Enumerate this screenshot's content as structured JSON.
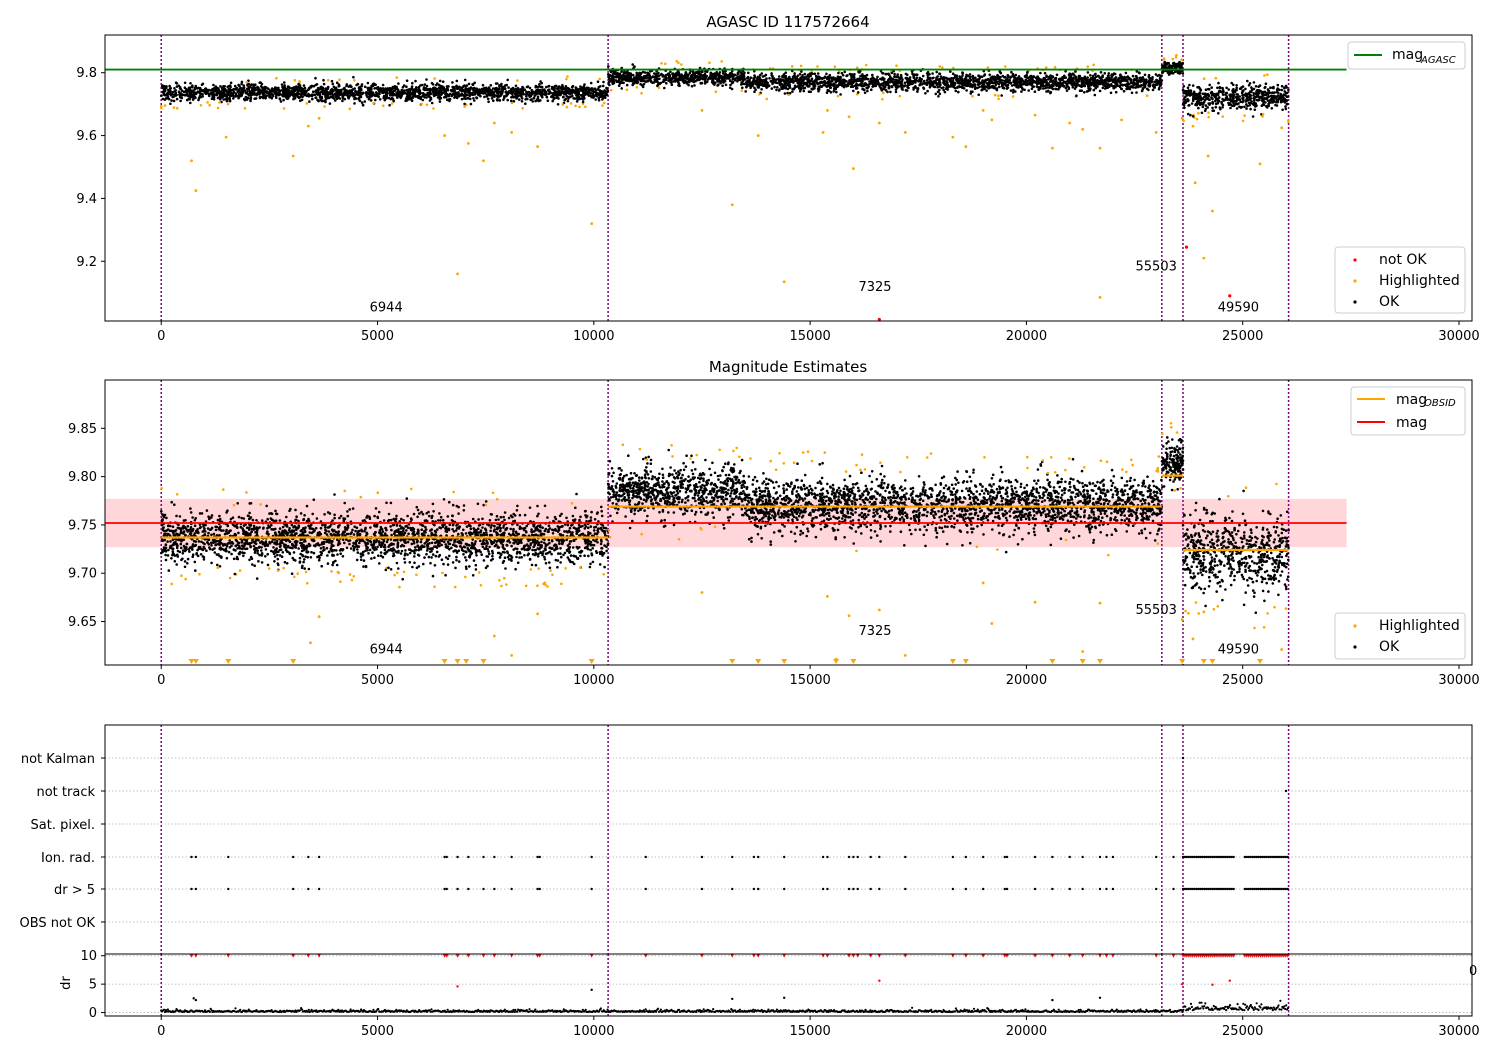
{
  "colors": {
    "ok": "#000000",
    "highlighted": "#ffa500",
    "not_ok": "#ff0000",
    "agasc_line": "#008000",
    "mag_line": "#ff0000",
    "obsid_line": "#ffa500",
    "band": "#ffd6d9",
    "obs_boundary": "#800080",
    "grid": "#b0b0b0"
  },
  "chart_data": [
    {
      "type": "scatter",
      "title": "AGASC ID 117572664",
      "xlim": [
        -1300,
        30300
      ],
      "ylim": [
        9.01,
        9.92
      ],
      "xticks": [
        "0",
        "5000",
        "10000",
        "15000",
        "20000",
        "25000",
        "30000"
      ],
      "yticks": [
        "9.2",
        "9.4",
        "9.6",
        "9.8"
      ],
      "obs_boundaries": [
        0,
        10330,
        23130,
        23620,
        26060
      ],
      "segments": [
        {
          "x0": 0,
          "x1": 10330,
          "mean": 9.737,
          "spread": 0.013,
          "sign": -1
        },
        {
          "x0": 10330,
          "x1": 13500,
          "mean": 9.785,
          "spread": 0.013,
          "sign": 1
        },
        {
          "x0": 13500,
          "x1": 23130,
          "mean": 9.77,
          "spread": 0.014,
          "sign": 1
        },
        {
          "x0": 23130,
          "x1": 23620,
          "mean": 9.815,
          "spread": 0.011,
          "sign": 1
        },
        {
          "x0": 23620,
          "x1": 26060,
          "mean": 9.722,
          "spread": 0.02,
          "sign": -1
        }
      ],
      "agasc_mag": 9.81,
      "agasc_xrange": [
        -1300,
        27400
      ],
      "not_ok_points": [
        [
          16600,
          9.015
        ],
        [
          23700,
          9.245
        ],
        [
          24700,
          9.09
        ]
      ],
      "outlier_points": [
        [
          700,
          9.52
        ],
        [
          800,
          9.425
        ],
        [
          1500,
          9.595
        ],
        [
          3050,
          9.535
        ],
        [
          3400,
          9.63
        ],
        [
          3650,
          9.655
        ],
        [
          6550,
          9.6
        ],
        [
          6850,
          9.16
        ],
        [
          7100,
          9.575
        ],
        [
          7450,
          9.52
        ],
        [
          7700,
          9.64
        ],
        [
          8100,
          9.61
        ],
        [
          8700,
          9.565
        ],
        [
          9950,
          9.32
        ],
        [
          12500,
          9.68
        ],
        [
          13200,
          9.38
        ],
        [
          13800,
          9.6
        ],
        [
          14400,
          9.135
        ],
        [
          15300,
          9.61
        ],
        [
          15400,
          9.68
        ],
        [
          15900,
          9.66
        ],
        [
          16000,
          9.495
        ],
        [
          16600,
          9.64
        ],
        [
          17200,
          9.61
        ],
        [
          18300,
          9.595
        ],
        [
          18600,
          9.565
        ],
        [
          19000,
          9.68
        ],
        [
          19200,
          9.65
        ],
        [
          20200,
          9.665
        ],
        [
          20600,
          9.56
        ],
        [
          21000,
          9.64
        ],
        [
          21300,
          9.62
        ],
        [
          21700,
          9.56
        ],
        [
          21700,
          9.085
        ],
        [
          22200,
          9.65
        ],
        [
          23000,
          9.61
        ],
        [
          23600,
          9.655
        ],
        [
          23850,
          9.63
        ],
        [
          23900,
          9.45
        ],
        [
          24100,
          9.21
        ],
        [
          24200,
          9.535
        ],
        [
          24300,
          9.36
        ],
        [
          25400,
          9.51
        ],
        [
          25900,
          9.625
        ]
      ],
      "annotations": [
        {
          "text": "6944",
          "x": 5200,
          "y": 9.04
        },
        {
          "text": "7325",
          "x": 16500,
          "y": 9.105
        },
        {
          "text": "55503",
          "x": 23000,
          "y": 9.17
        },
        {
          "text": "49590",
          "x": 24900,
          "y": 9.04
        }
      ],
      "legend_upper": {
        "agasc": "mag",
        "agasc_sub": "AGASC"
      },
      "legend_lower": [
        "not OK",
        "Highlighted",
        "OK"
      ]
    },
    {
      "type": "scatter",
      "title": "Magnitude Estimates",
      "xlim": [
        -1300,
        30300
      ],
      "ylim": [
        9.605,
        9.9
      ],
      "xticks": [
        "0",
        "5000",
        "10000",
        "15000",
        "20000",
        "25000",
        "30000"
      ],
      "yticks": [
        "9.65",
        "9.70",
        "9.75",
        "9.80",
        "9.85"
      ],
      "obs_boundaries": [
        0,
        10330,
        23130,
        23620,
        26060
      ],
      "segments": [
        {
          "x0": 0,
          "x1": 10330,
          "mean": 9.737,
          "spread": 0.013,
          "sign": -1
        },
        {
          "x0": 10330,
          "x1": 13500,
          "mean": 9.785,
          "spread": 0.013,
          "sign": 1
        },
        {
          "x0": 13500,
          "x1": 23130,
          "mean": 9.77,
          "spread": 0.014,
          "sign": 1
        },
        {
          "x0": 23130,
          "x1": 23620,
          "mean": 9.815,
          "spread": 0.011,
          "sign": 1
        },
        {
          "x0": 23620,
          "x1": 26060,
          "mean": 9.722,
          "spread": 0.02,
          "sign": -1
        }
      ],
      "obsid_means": [
        {
          "x0": 0,
          "x1": 10330,
          "mag": 9.737
        },
        {
          "x0": 10330,
          "x1": 23130,
          "mag": 9.769
        },
        {
          "x0": 23130,
          "x1": 23620,
          "mag": 9.801
        },
        {
          "x0": 23620,
          "x1": 26060,
          "mag": 9.724
        }
      ],
      "mag": 9.752,
      "mag_band": [
        9.727,
        9.777
      ],
      "mag_xrange": [
        -1300,
        27400
      ],
      "clipped_points_x": [
        700,
        800,
        1550,
        3050,
        6550,
        6850,
        7050,
        7450,
        9950,
        13200,
        13800,
        14400,
        15600,
        16000,
        18300,
        18600,
        20600,
        21300,
        21700,
        23600,
        24100,
        24300,
        25400
      ],
      "outlier_points": [
        [
          3450,
          9.628
        ],
        [
          3650,
          9.655
        ],
        [
          7700,
          9.635
        ],
        [
          8100,
          9.615
        ],
        [
          8700,
          9.658
        ],
        [
          12500,
          9.68
        ],
        [
          15400,
          9.676
        ],
        [
          15600,
          9.611
        ],
        [
          15900,
          9.656
        ],
        [
          16600,
          9.662
        ],
        [
          17200,
          9.615
        ],
        [
          19000,
          9.69
        ],
        [
          19200,
          9.648
        ],
        [
          20200,
          9.67
        ],
        [
          21700,
          9.669
        ],
        [
          21300,
          9.619
        ],
        [
          23600,
          9.652
        ],
        [
          23850,
          9.632
        ],
        [
          25900,
          9.621
        ],
        [
          24100,
          9.66
        ]
      ],
      "annotations": [
        {
          "text": "6944",
          "x": 5200,
          "y": 9.617
        },
        {
          "text": "7325",
          "x": 16500,
          "y": 9.636
        },
        {
          "text": "55503",
          "x": 23000,
          "y": 9.658
        },
        {
          "text": "49590",
          "x": 24900,
          "y": 9.617
        }
      ],
      "legend_upper": {
        "obsid": "mag",
        "obsid_sub": "OBSID",
        "mag": "mag"
      },
      "legend_lower": [
        "Highlighted",
        "OK"
      ]
    },
    {
      "type": "scatter",
      "title": "",
      "xlim": [
        -1300,
        30300
      ],
      "xticks": [
        "0",
        "5000",
        "10000",
        "15000",
        "20000",
        "25000",
        "30000"
      ],
      "obs_boundaries": [
        0,
        10330,
        23130,
        23620,
        26060
      ],
      "flag_rows": [
        "not Kalman",
        "not track",
        "Sat. pixel.",
        "Ion. rad.",
        "dr > 5",
        "OBS not OK"
      ],
      "flag_x": [
        700,
        800,
        1550,
        3050,
        3400,
        3650,
        6550,
        6600,
        6850,
        7100,
        7450,
        7700,
        8100,
        8700,
        8750,
        9950,
        11200,
        12500,
        13200,
        13700,
        13800,
        14400,
        15300,
        15400,
        15900,
        16000,
        16100,
        16400,
        16600,
        17200,
        18300,
        18600,
        19000,
        19500,
        19550,
        20200,
        20600,
        21000,
        21300,
        21700,
        21850,
        22000,
        23000,
        23400
      ],
      "flag_x_last": [
        [
          23620,
          24800
        ],
        [
          25050,
          26060
        ]
      ],
      "not_kalman_x": [
        23620
      ],
      "not_track_x": [
        26000
      ],
      "dr_ylabel": "dr",
      "dr_ylim": [
        -0.6,
        10.3
      ],
      "dr_yticks": [
        "0",
        "5",
        "10"
      ],
      "dr_points": [
        [
          750,
          2.5
        ],
        [
          800,
          2.2
        ],
        [
          6850,
          4.6
        ],
        [
          9950,
          4.0
        ],
        [
          13200,
          2.4
        ],
        [
          14400,
          2.6
        ],
        [
          16600,
          5.6
        ],
        [
          20600,
          2.2
        ],
        [
          21700,
          2.6
        ],
        [
          23600,
          5.0
        ],
        [
          24300,
          4.9
        ],
        [
          24700,
          5.6
        ]
      ],
      "stray_tick_label": "0"
    }
  ]
}
